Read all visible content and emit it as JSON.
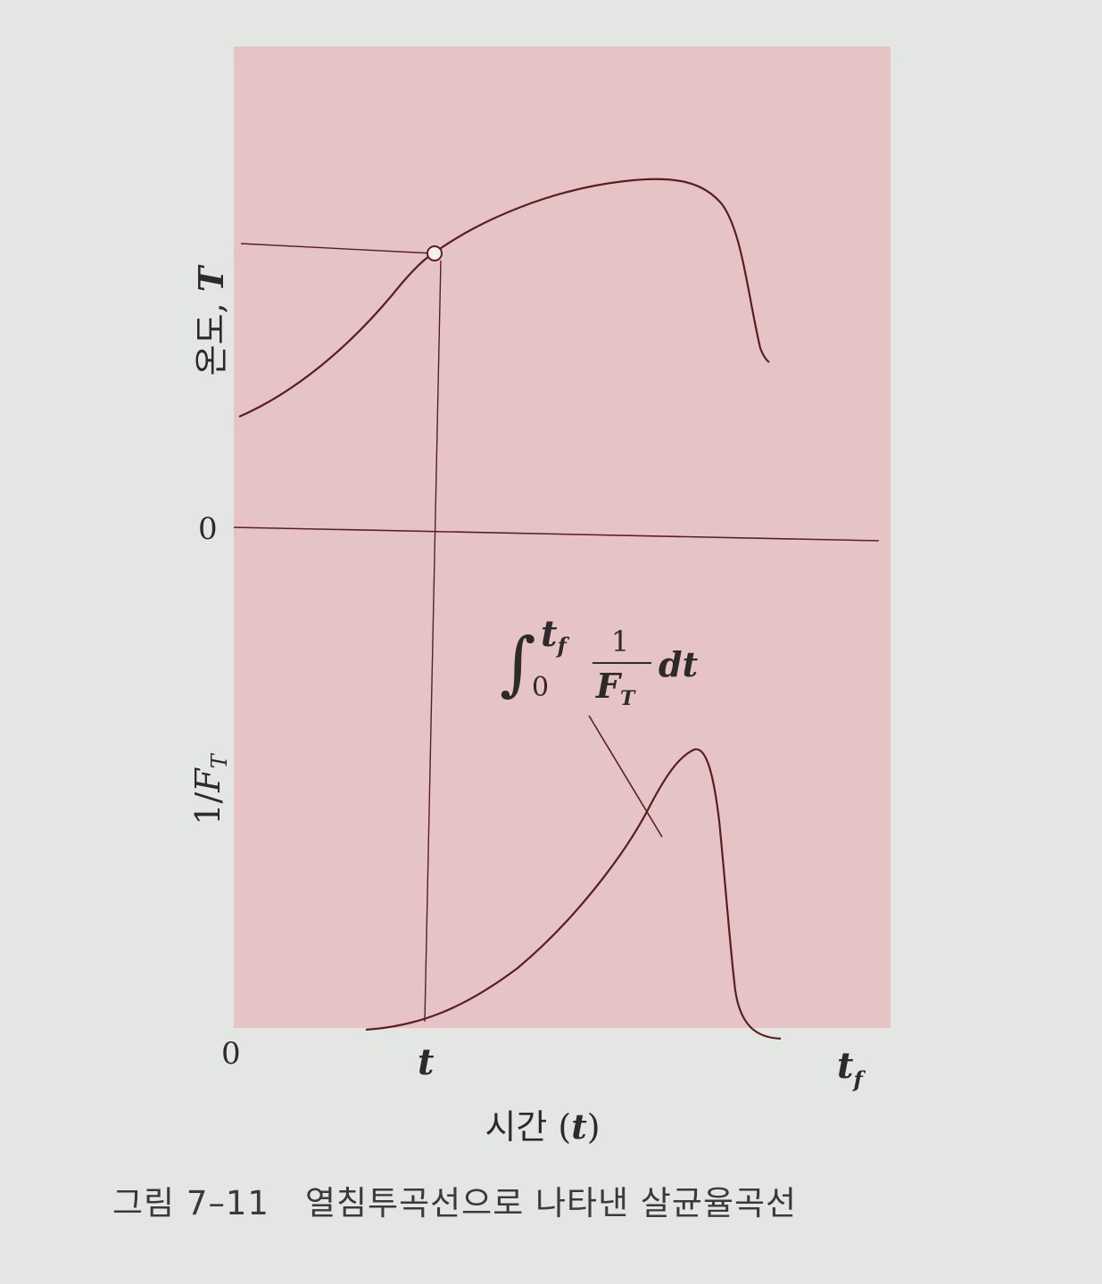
{
  "caption": {
    "number": "그림 7–11",
    "text": "열침투곡선으로 나타낸 살균율곡선"
  },
  "colors": {
    "panel": "#e6c4c6",
    "curve": "#5a1e22",
    "page": "#e4e6e3",
    "text": "#2f2a2a"
  },
  "chart_data": {
    "type": "line",
    "xlabel_text": "시간 (",
    "xlabel_var": "t",
    "xlabel_close": ")",
    "x_ticks": {
      "zero": "0",
      "t": "t",
      "tf_base": "t",
      "tf_sub": "f"
    },
    "top_panel": {
      "ylabel_text": "온도, ",
      "ylabel_var": "T",
      "zero_label": "0",
      "curve": [
        [
          0.0,
          0.38
        ],
        [
          0.1,
          0.47
        ],
        [
          0.2,
          0.59
        ],
        [
          0.28,
          0.71
        ],
        [
          0.32,
          0.76
        ],
        [
          0.4,
          0.84
        ],
        [
          0.5,
          0.9
        ],
        [
          0.6,
          0.94
        ],
        [
          0.7,
          0.96
        ],
        [
          0.75,
          0.96
        ],
        [
          0.8,
          0.93
        ],
        [
          0.84,
          0.85
        ],
        [
          0.87,
          0.7
        ],
        [
          0.9,
          0.56
        ],
        [
          0.93,
          0.5
        ]
      ],
      "marked_point": [
        0.32,
        0.76
      ]
    },
    "bottom_panel": {
      "ylabel_text": "1/",
      "ylabel_var": "F",
      "ylabel_sub": "T",
      "curve": [
        [
          0.2,
          0.0
        ],
        [
          0.3,
          0.04
        ],
        [
          0.4,
          0.12
        ],
        [
          0.5,
          0.26
        ],
        [
          0.6,
          0.46
        ],
        [
          0.7,
          0.72
        ],
        [
          0.76,
          0.94
        ],
        [
          0.8,
          1.0
        ],
        [
          0.83,
          0.9
        ],
        [
          0.86,
          0.55
        ],
        [
          0.88,
          0.2
        ],
        [
          0.9,
          0.05
        ],
        [
          0.93,
          0.0
        ]
      ],
      "annotation": {
        "integral_sign": "∫",
        "upper_base": "t",
        "upper_sub": "f",
        "lower": "0",
        "numerator": "1",
        "denominator_base": "F",
        "denominator_sub": "T",
        "differential": "dt"
      }
    }
  }
}
